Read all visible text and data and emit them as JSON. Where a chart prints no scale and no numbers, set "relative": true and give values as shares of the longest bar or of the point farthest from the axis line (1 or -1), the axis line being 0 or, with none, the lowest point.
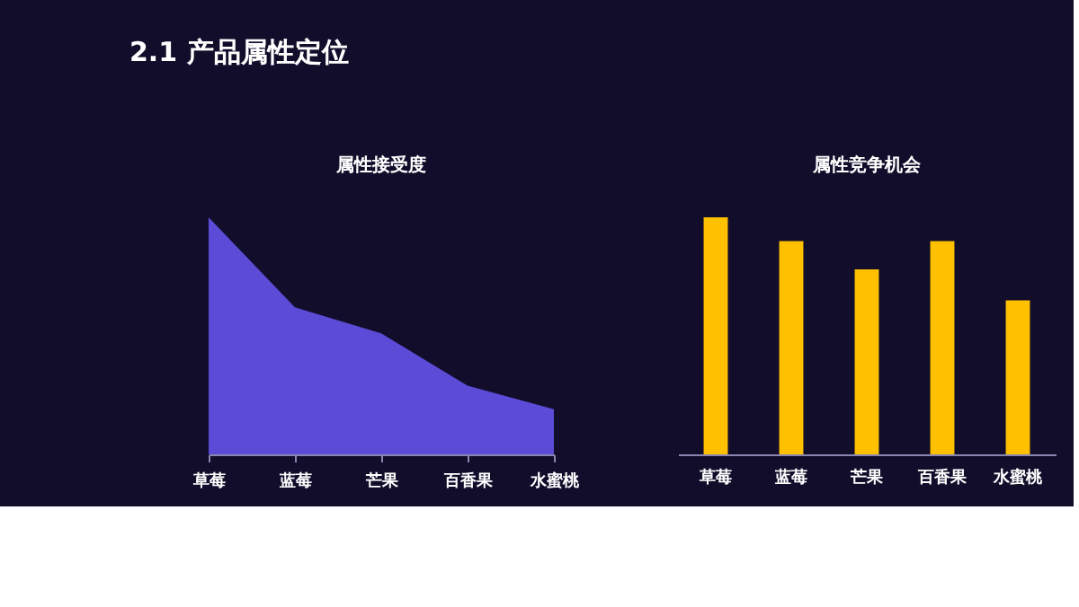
{
  "chart_data": [
    {
      "type": "area",
      "title": "属性接受度",
      "categories": [
        "草莓",
        "蓝莓",
        "芒果",
        "百香果",
        "水蜜桃"
      ],
      "values": [
        1,
        0.62,
        0.51,
        0.29,
        0.19
      ],
      "color": "#5b4bd6",
      "relative": true,
      "annotations": [
        "2.1 产品属性定位"
      ]
    },
    {
      "type": "bar",
      "title": "属性竞争机会",
      "categories": [
        "草莓",
        "蓝莓",
        "芒果",
        "百香果",
        "水蜜桃"
      ],
      "values": [
        1,
        0.9,
        0.78,
        0.9,
        0.65
      ],
      "color": "#ffc000",
      "relative": true
    }
  ]
}
